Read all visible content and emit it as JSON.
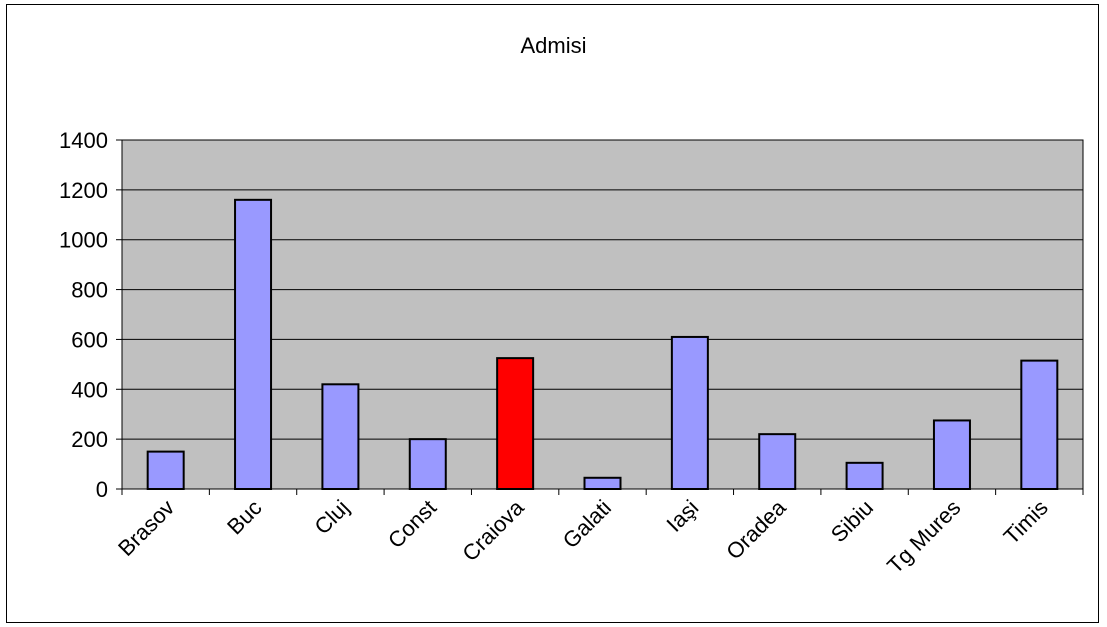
{
  "chart_data": {
    "type": "bar",
    "title": "Admisi",
    "xlabel": "",
    "ylabel": "",
    "categories": [
      "Brasov",
      "Buc",
      "Cluj",
      "Const",
      "Craiova",
      "Galati",
      "Iaşi",
      "Oradea",
      "Sibiu",
      "Tg Mures",
      "Timis"
    ],
    "values": [
      150,
      1160,
      420,
      200,
      525,
      45,
      610,
      220,
      105,
      275,
      515
    ],
    "highlight": "Craiova",
    "ylim": [
      0,
      1400
    ],
    "yticks": [
      0,
      200,
      400,
      600,
      800,
      1000,
      1200,
      1400
    ],
    "grid": true,
    "legend": "none",
    "colors": {
      "bar": "#9999ff",
      "highlight_bar": "#ff0000",
      "plot_area": "#c0c0c0",
      "gridline": "#000000",
      "bar_outline": "#000000"
    }
  }
}
